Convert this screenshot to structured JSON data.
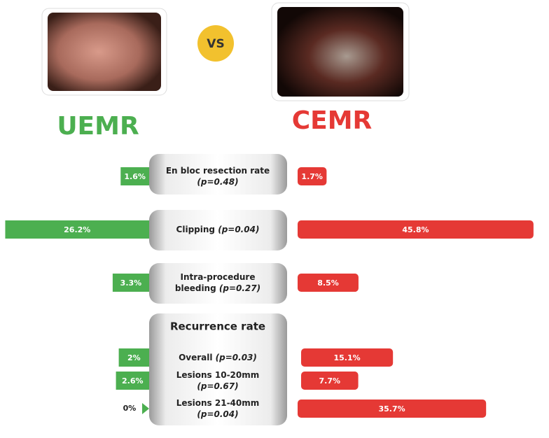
{
  "chart_data": {
    "type": "diverging-bar",
    "vs": "VS",
    "section_title": "Recurrence rate",
    "categories": [
      {
        "name": "En bloc resection rate",
        "p": "(p=0.48)"
      },
      {
        "name": "Clipping",
        "p": "(p=0.04)"
      },
      {
        "name": "Intra-procedure bleeding",
        "p": "(p=0.27)"
      },
      {
        "name": "Overall",
        "p": "(p=0.03)"
      },
      {
        "name": "Lesions 10-20mm",
        "p": "(p=0.67)"
      },
      {
        "name": "Lesions 21-40mm",
        "p": "(p=0.04)"
      }
    ],
    "series": [
      {
        "name": "UEMR",
        "color": "#4caf50",
        "values": [
          1.6,
          26.2,
          3.3,
          2,
          2.6,
          0
        ],
        "value_labels": [
          "1.6%",
          "26.2%",
          "3.3%",
          "2%",
          "2.6%",
          "0%"
        ]
      },
      {
        "name": "CEMR",
        "color": "#e53935",
        "values": [
          1.7,
          45.8,
          8.5,
          15.1,
          7.7,
          35.7
        ],
        "value_labels": [
          "1.7%",
          "45.8%",
          "8.5%",
          "15.1%",
          "7.7%",
          "35.7%"
        ]
      }
    ]
  }
}
